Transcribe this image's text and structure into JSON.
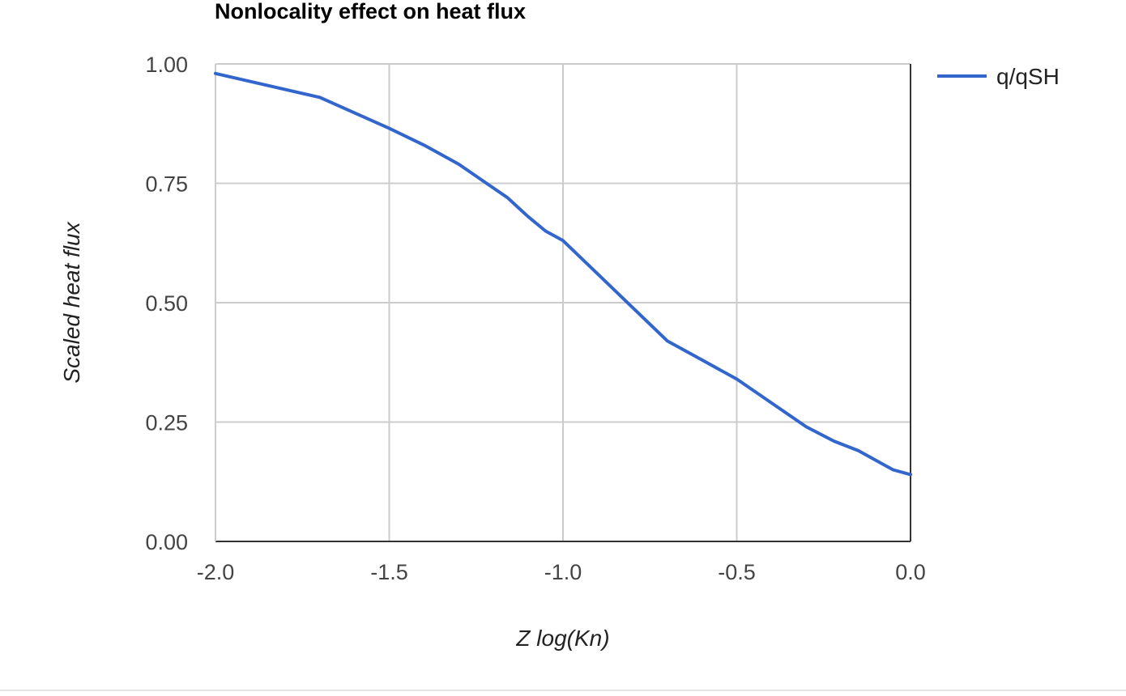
{
  "chart_data": {
    "type": "line",
    "title": "Nonlocality effect on heat flux",
    "xlabel": "Z log(Kn)",
    "ylabel": "Scaled heat flux",
    "xlim": [
      -2.0,
      0.0
    ],
    "ylim": [
      0.0,
      1.0
    ],
    "x_ticks": [
      "-2.0",
      "-1.5",
      "-1.0",
      "-0.5",
      "0.0"
    ],
    "x_tick_values": [
      -2.0,
      -1.5,
      -1.0,
      -0.5,
      0.0
    ],
    "y_ticks": [
      "0.00",
      "0.25",
      "0.50",
      "0.75",
      "1.00"
    ],
    "y_tick_values": [
      0.0,
      0.25,
      0.5,
      0.75,
      1.0
    ],
    "grid": true,
    "legend_position": "right",
    "series": [
      {
        "name": "q/qSH",
        "color": "#3366cc",
        "x": [
          -2.0,
          -1.7,
          -1.5,
          -1.4,
          -1.3,
          -1.22,
          -1.16,
          -1.1,
          -1.05,
          -1.0,
          -0.9,
          -0.8,
          -0.7,
          -0.6,
          -0.5,
          -0.4,
          -0.3,
          -0.22,
          -0.15,
          -0.1,
          -0.05,
          0.0
        ],
        "values": [
          0.98,
          0.93,
          0.865,
          0.83,
          0.79,
          0.75,
          0.72,
          0.68,
          0.65,
          0.63,
          0.56,
          0.49,
          0.42,
          0.38,
          0.34,
          0.29,
          0.24,
          0.21,
          0.19,
          0.17,
          0.15,
          0.14
        ]
      }
    ]
  }
}
